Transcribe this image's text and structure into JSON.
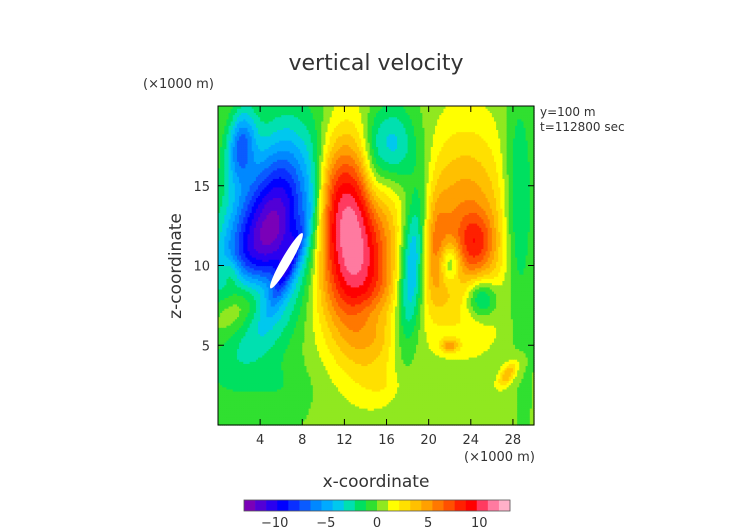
{
  "chart_data": {
    "type": "heatmap",
    "title": "vertical velocity",
    "xlabel": "x-coordinate",
    "ylabel": "z-coordinate",
    "x_unit": "(×1000 m)",
    "y_unit": "(×1000 m)",
    "annotations": [
      "y=100 m",
      "t=112800 sec"
    ],
    "xlim": [
      0,
      30
    ],
    "ylim": [
      0,
      20
    ],
    "x_ticks": [
      4,
      8,
      12,
      16,
      20,
      24,
      28
    ],
    "y_ticks": [
      5,
      10,
      15
    ],
    "colorbar": {
      "range": [
        -13,
        13
      ],
      "ticks": [
        -10,
        -5,
        0,
        5,
        10
      ],
      "colors": [
        "#7a00b8",
        "#5200d6",
        "#2a00f0",
        "#0000ff",
        "#0a2fff",
        "#0a5bff",
        "#0088ff",
        "#00aaff",
        "#00c8ee",
        "#00e0b0",
        "#00e060",
        "#30e030",
        "#90e820",
        "#ffff00",
        "#ffe000",
        "#ffc000",
        "#ffa000",
        "#ff7800",
        "#ff5000",
        "#ff2000",
        "#ff0000",
        "#ff3a60",
        "#ff7aa0",
        "#ffb0c8"
      ]
    },
    "background_value": 0,
    "features": [
      {
        "cx": 5.0,
        "cy": 12.0,
        "sx": 2.6,
        "sy": 4.8,
        "angle": 30,
        "amp": -13.0
      },
      {
        "cx": 6.6,
        "cy": 10.0,
        "sx": 0.5,
        "sy": 2.0,
        "angle": 32,
        "amp": -4.0
      },
      {
        "cx": 2.2,
        "cy": 17.6,
        "sx": 0.9,
        "sy": 1.6,
        "angle": 10,
        "amp": -6.0
      },
      {
        "cx": 9.0,
        "cy": 14.0,
        "sx": 0.8,
        "sy": 3.0,
        "angle": 5,
        "amp": -2.0
      },
      {
        "cx": 12.6,
        "cy": 11.5,
        "sx": 2.6,
        "sy": 4.8,
        "angle": -12,
        "amp": 12.0
      },
      {
        "cx": 11.0,
        "cy": 15.0,
        "sx": 1.5,
        "sy": 2.0,
        "angle": -10,
        "amp": 1.5
      },
      {
        "cx": 2.5,
        "cy": 7.8,
        "sx": 2.4,
        "sy": 1.3,
        "angle": -32,
        "amp": 7.0
      },
      {
        "cx": 1.3,
        "cy": 9.6,
        "sx": 0.7,
        "sy": 0.7,
        "angle": 0,
        "amp": 2.5
      },
      {
        "cx": 18.5,
        "cy": 10.2,
        "sx": 0.9,
        "sy": 3.5,
        "angle": 8,
        "amp": -7.0
      },
      {
        "cx": 16.5,
        "cy": 17.5,
        "sx": 1.6,
        "sy": 1.8,
        "angle": 0,
        "amp": -4.5
      },
      {
        "cx": 14.8,
        "cy": 16.0,
        "sx": 0.8,
        "sy": 2.2,
        "angle": 0,
        "amp": -2.0
      },
      {
        "cx": 23.5,
        "cy": 12.3,
        "sx": 3.2,
        "sy": 4.5,
        "angle": 0,
        "amp": 5.5
      },
      {
        "cx": 24.5,
        "cy": 11.5,
        "sx": 1.2,
        "sy": 1.3,
        "angle": 0,
        "amp": 3.5
      },
      {
        "cx": 20.5,
        "cy": 11.0,
        "sx": 0.9,
        "sy": 2.5,
        "angle": 0,
        "amp": 3.0
      },
      {
        "cx": 22.0,
        "cy": 10.2,
        "sx": 0.7,
        "sy": 0.9,
        "angle": 0,
        "amp": -4.5
      },
      {
        "cx": 25.0,
        "cy": 8.0,
        "sx": 1.1,
        "sy": 0.9,
        "angle": 0,
        "amp": -5.0
      },
      {
        "cx": 28.5,
        "cy": 13.5,
        "sx": 1.0,
        "sy": 4.5,
        "angle": 0,
        "amp": -3.5
      },
      {
        "cx": 27.5,
        "cy": 3.2,
        "sx": 0.8,
        "sy": 0.4,
        "angle": -40,
        "amp": 4.0
      },
      {
        "cx": 22.0,
        "cy": 5.0,
        "sx": 0.6,
        "sy": 0.3,
        "angle": 0,
        "amp": 4.0
      },
      {
        "cx": 14.5,
        "cy": 7.0,
        "sx": 1.6,
        "sy": 0.9,
        "angle": 0,
        "amp": -1.5
      },
      {
        "cx": 6.0,
        "cy": 2.5,
        "sx": 2.0,
        "sy": 1.0,
        "angle": 0,
        "amp": -0.8
      },
      {
        "cx": 16.0,
        "cy": 2.5,
        "sx": 1.5,
        "sy": 0.8,
        "angle": 0,
        "amp": 0.8
      }
    ],
    "updraft_core": {
      "cx": 6.5,
      "cy": 10.3,
      "rx": 0.45,
      "ry": 2.0,
      "angle": 30,
      "color": "#ffffff"
    }
  }
}
